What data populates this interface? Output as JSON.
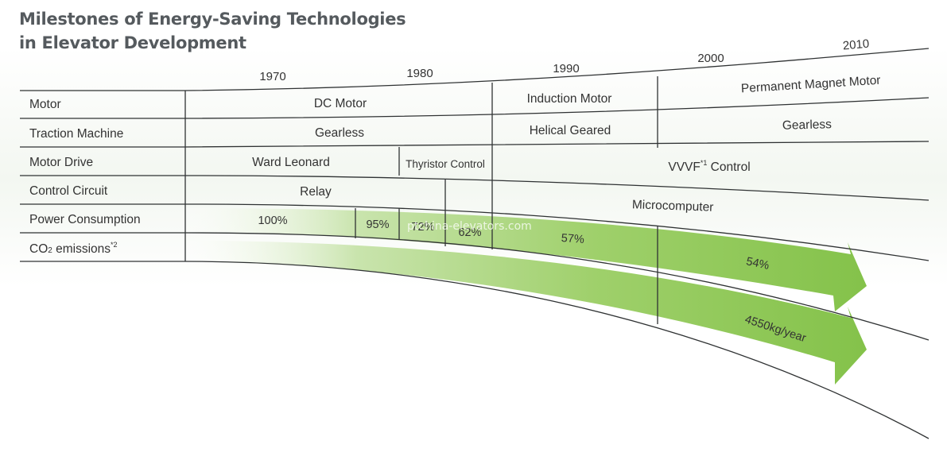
{
  "title": {
    "line1": "Milestones of Energy-Saving Technologies",
    "line2": "in Elevator Development"
  },
  "years": [
    "1970",
    "1980",
    "1990",
    "2000",
    "2010"
  ],
  "rows": {
    "motor": {
      "label": "Motor",
      "cells": [
        "DC Motor",
        "Induction Motor",
        "Permanent Magnet Motor"
      ]
    },
    "traction_machine": {
      "label": "Traction Machine",
      "cells": [
        "Gearless",
        "Helical Geared",
        "Gearless"
      ]
    },
    "motor_drive": {
      "label": "Motor Drive",
      "cells": [
        "Ward Leonard",
        "Thyristor Control"
      ],
      "vvvf": {
        "main": "VVVF",
        "sup": "*1",
        "tail": " Control"
      }
    },
    "control_circuit": {
      "label": "Control Circuit",
      "cells": [
        "Relay",
        "Microcomputer"
      ]
    },
    "power_consumption": {
      "label": "Power Consumption",
      "values": [
        "100%",
        "95%",
        "72%",
        "62%",
        "57%",
        "54%"
      ]
    },
    "co2": {
      "label_main": "CO",
      "label_sub": "2",
      "label_tail": " emissions",
      "label_sup": "*2",
      "value": "4550kg/year"
    }
  },
  "watermark": "ptchina-elevators.com",
  "colors": {
    "arrow_green": "#8ac650",
    "arrow_light": "#eef6e4",
    "line": "#2f3233",
    "text": "#333333",
    "title": "#555a5e",
    "background_tint": "#eef4ec"
  }
}
